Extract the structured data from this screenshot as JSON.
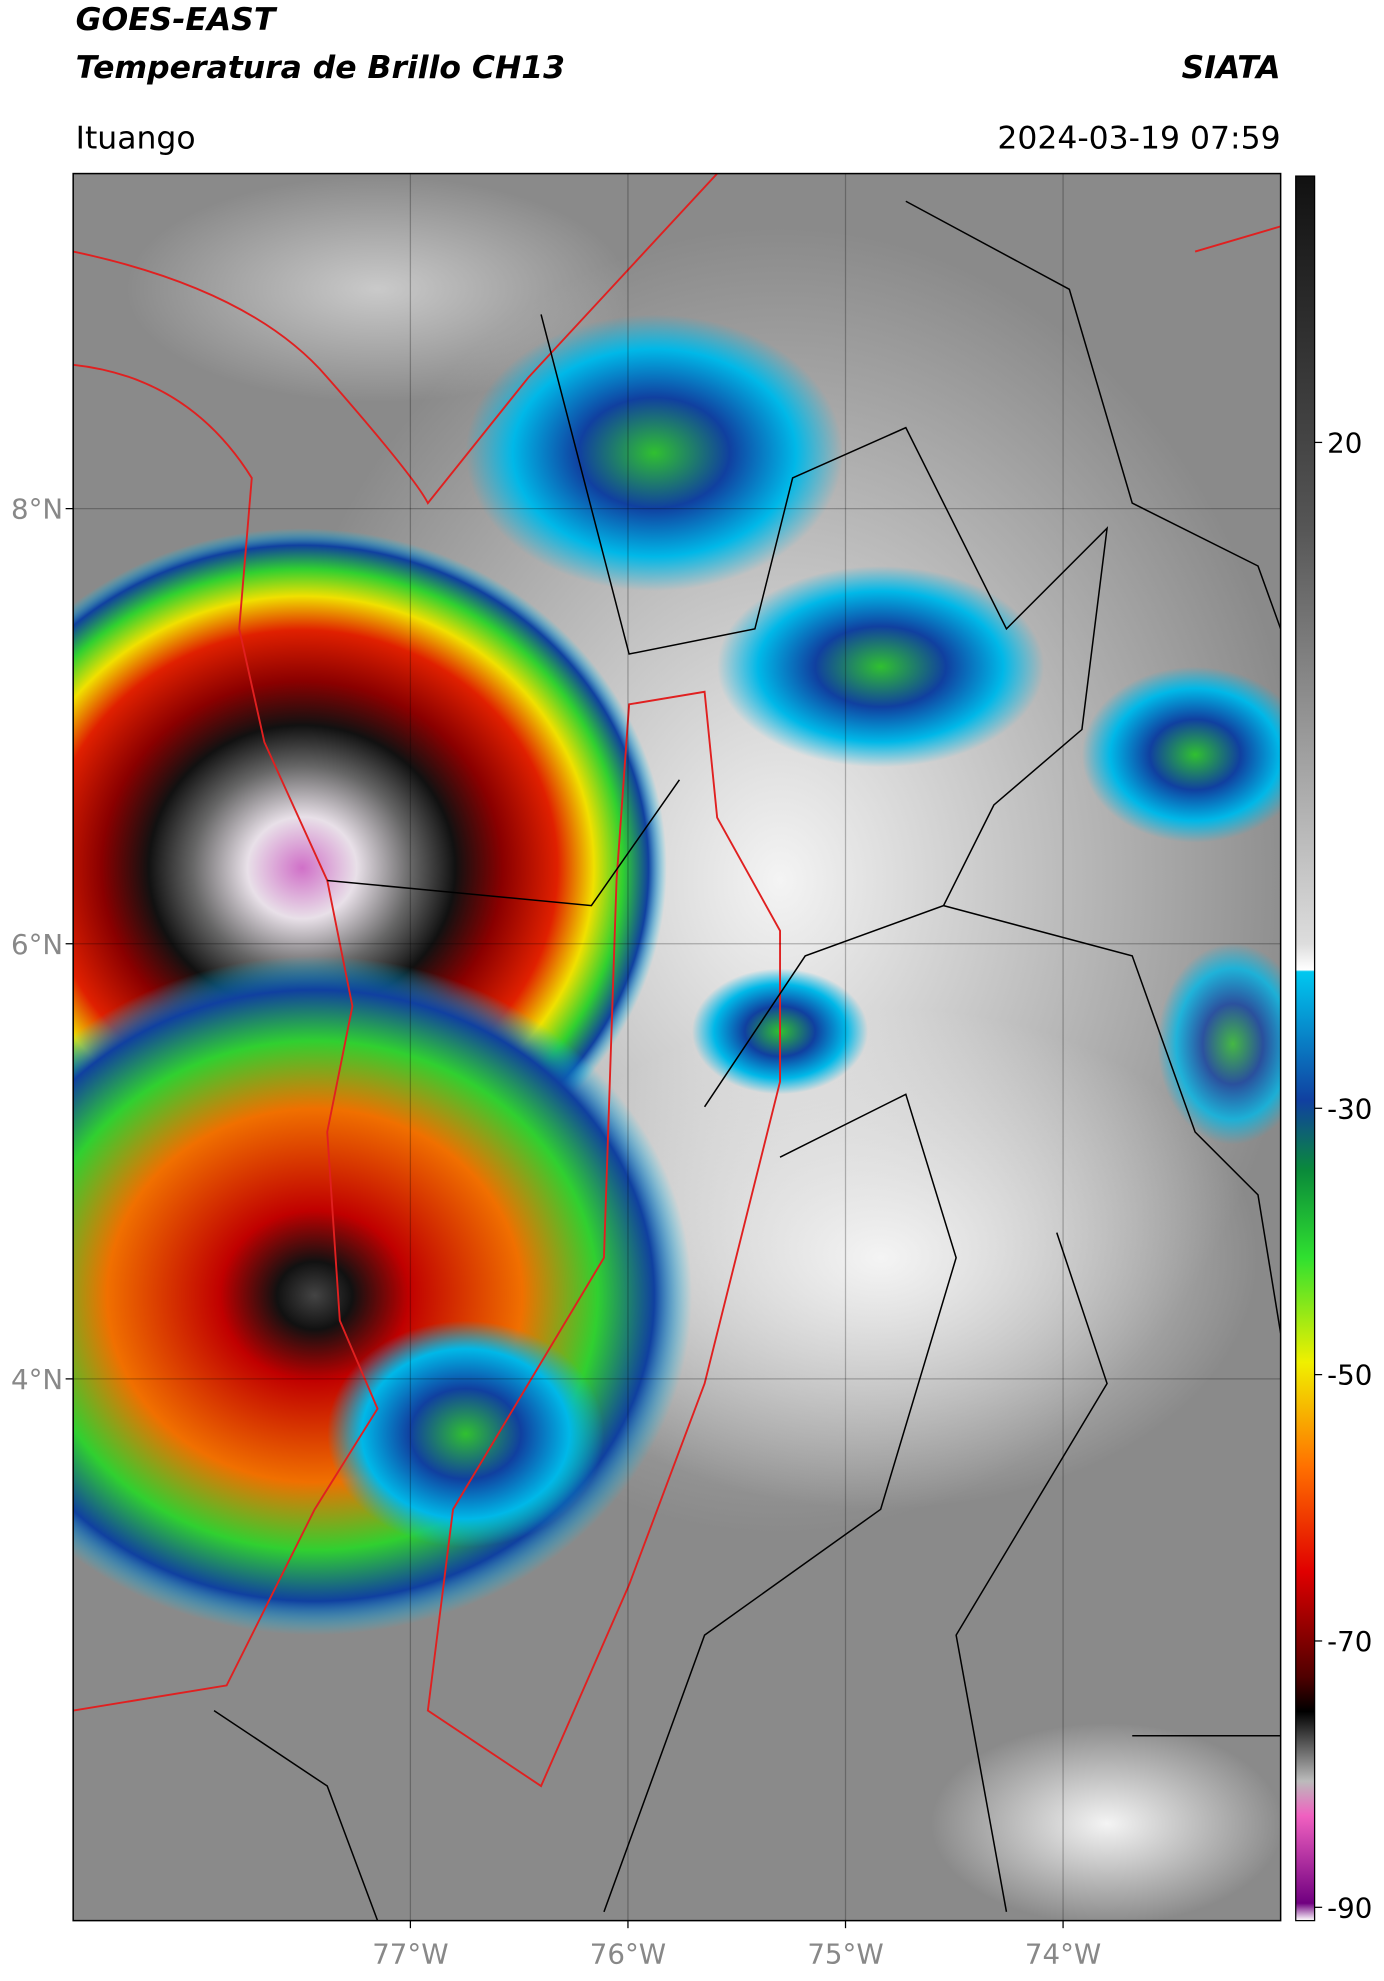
{
  "header": {
    "title_line1": "GOES-EAST",
    "title_line2": "Temperatura de Brillo CH13",
    "org": "SIATA",
    "location": "Ituango",
    "datetime": "2024-03-19 07:59"
  },
  "map": {
    "xlim": [
      -78.55,
      -73.0
    ],
    "ylim": [
      1.51,
      9.54
    ],
    "lat_ticks": [
      {
        "value": 8,
        "label": "8°N"
      },
      {
        "value": 6,
        "label": "6°N"
      },
      {
        "value": 4,
        "label": "4°N"
      }
    ],
    "lon_ticks": [
      {
        "value": -77,
        "label": "77°W"
      },
      {
        "value": -76,
        "label": "76°W"
      },
      {
        "value": -75,
        "label": "75°W"
      },
      {
        "value": -74,
        "label": "74°W"
      }
    ]
  },
  "colorbar": {
    "clim": [
      -91,
      40
    ],
    "ticks": [
      20,
      -30,
      -50,
      -70,
      -90
    ]
  }
}
